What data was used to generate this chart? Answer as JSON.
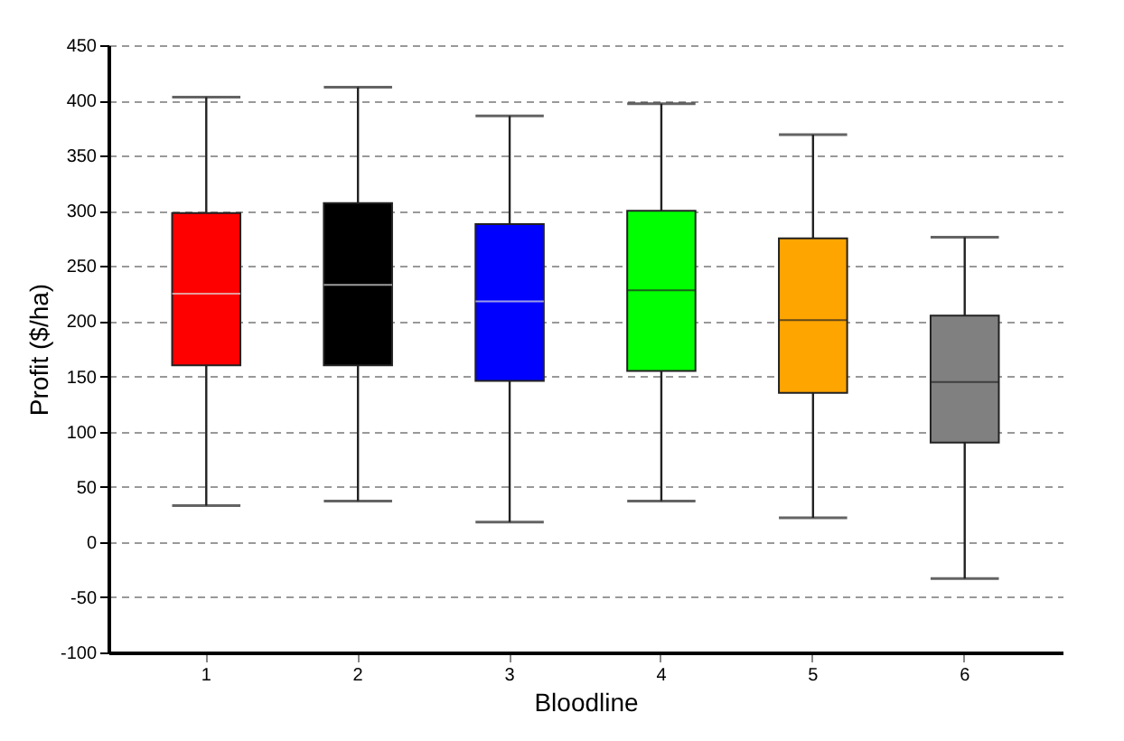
{
  "chart_data": {
    "type": "box",
    "xlabel": "Bloodline",
    "ylabel": "Profit ($/ha)",
    "categories": [
      "1",
      "2",
      "3",
      "4",
      "5",
      "6"
    ],
    "colors": [
      "#ff0000",
      "#000000",
      "#0000ff",
      "#00ff00",
      "#ffa500",
      "#808080"
    ],
    "boxes": [
      {
        "low": 33,
        "q1": 160,
        "median": 225,
        "q3": 298,
        "high": 403
      },
      {
        "low": 37,
        "q1": 160,
        "median": 233,
        "q3": 307,
        "high": 412
      },
      {
        "low": 18,
        "q1": 146,
        "median": 218,
        "q3": 288,
        "high": 386
      },
      {
        "low": 37,
        "q1": 155,
        "median": 228,
        "q3": 300,
        "high": 397
      },
      {
        "low": 22,
        "q1": 135,
        "median": 201,
        "q3": 275,
        "high": 369
      },
      {
        "low": -33,
        "q1": 90,
        "median": 145,
        "q3": 205,
        "high": 276
      }
    ],
    "ylim": [
      -100,
      450
    ],
    "yticks": [
      -100,
      -50,
      0,
      50,
      100,
      150,
      200,
      250,
      300,
      350,
      400,
      450
    ],
    "grid": "y"
  }
}
